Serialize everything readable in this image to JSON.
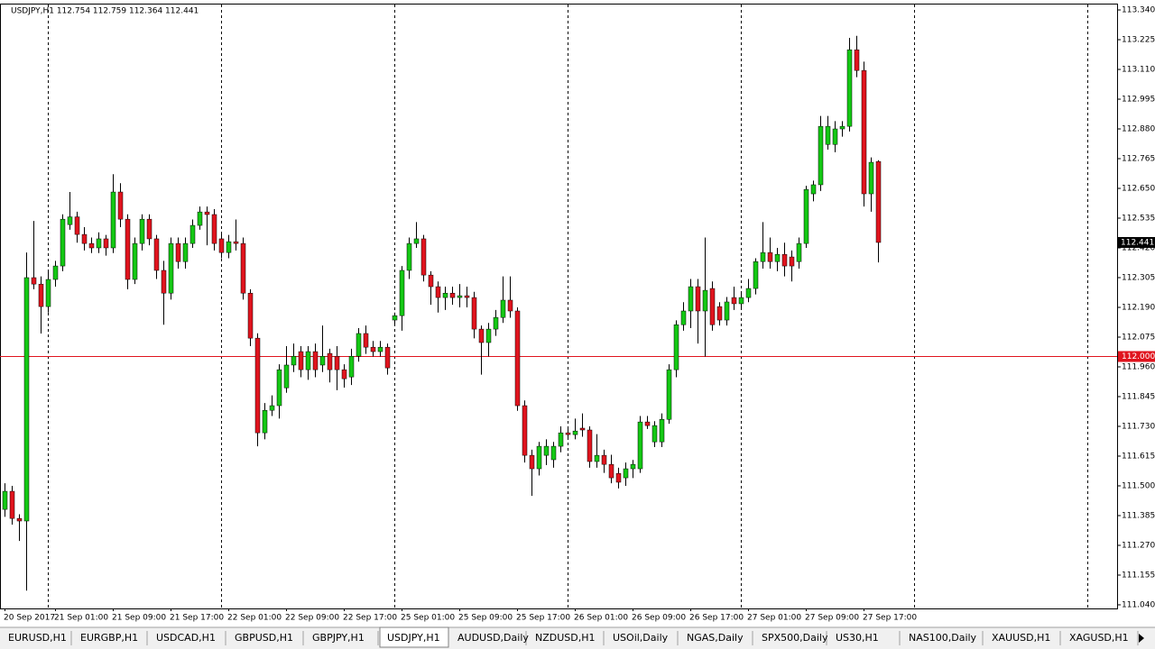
{
  "chart_data": {
    "type": "candlestick",
    "header": "USDJPY,H1  112.754 112.759 112.364 112.441",
    "categories": [
      "20 Sep 2017",
      null,
      null,
      null,
      null,
      null,
      null,
      "21 Sep 01:00",
      null,
      null,
      null,
      null,
      null,
      null,
      null,
      "21 Sep 09:00",
      null,
      null,
      null,
      null,
      null,
      null,
      null,
      "21 Sep 17:00",
      null,
      null,
      null,
      null,
      null,
      null,
      null,
      "22 Sep 01:00",
      null,
      null,
      null,
      null,
      null,
      null,
      null,
      "22 Sep 09:00",
      null,
      null,
      null,
      null,
      null,
      null,
      null,
      "22 Sep 17:00",
      null,
      null,
      null,
      null,
      null,
      null,
      null,
      "25 Sep 01:00",
      null,
      null,
      null,
      null,
      null,
      null,
      null,
      "25 Sep 09:00",
      null,
      null,
      null,
      null,
      null,
      null,
      null,
      "25 Sep 17:00",
      null,
      null,
      null,
      null,
      null,
      null,
      null,
      "26 Sep 01:00",
      null,
      null,
      null,
      null,
      null,
      null,
      null,
      "26 Sep 09:00",
      null,
      null,
      null,
      null,
      null,
      null,
      null,
      "26 Sep 17:00",
      null,
      null,
      null,
      null,
      null,
      null,
      null,
      "27 Sep 01:00",
      null,
      null,
      null,
      null,
      null,
      null,
      null,
      "27 Sep 09:00",
      null,
      null,
      null,
      null,
      null,
      null,
      null,
      "27 Sep 17:00",
      null,
      null
    ],
    "open": [
      111.409,
      111.479,
      111.374,
      111.364,
      112.305,
      112.28,
      112.193,
      112.298,
      112.35,
      112.51,
      112.54,
      112.472,
      112.437,
      112.42,
      112.455,
      112.42,
      112.636,
      112.531,
      112.298,
      112.437,
      112.531,
      112.455,
      112.333,
      112.245,
      112.437,
      112.367,
      112.437,
      112.507,
      112.559,
      112.549,
      112.455,
      112.402,
      112.444,
      112.437,
      112.245,
      112.071,
      111.705,
      111.792,
      111.81,
      111.879,
      111.967,
      112.019,
      111.949,
      112.019,
      111.967,
      112.012,
      112.001,
      111.949,
      111.921,
      112.001,
      112.089,
      112.036,
      112.019,
      112.036,
      112.141,
      112.158,
      112.333,
      112.437,
      112.455,
      112.315,
      112.27,
      112.228,
      112.245,
      112.228,
      112.235,
      112.228,
      112.106,
      112.054,
      112.106,
      112.151,
      112.218,
      112.176,
      111.81,
      111.618,
      111.566,
      111.618,
      111.601,
      111.653,
      111.705,
      111.698,
      111.723,
      111.716,
      111.594,
      111.618,
      111.583,
      111.548,
      111.531,
      111.566,
      111.566,
      111.747,
      111.67,
      111.67,
      111.757,
      111.949,
      112.123,
      112.176,
      112.27,
      112.176,
      112.263,
      112.193,
      112.141,
      112.228,
      112.204,
      112.228,
      112.263,
      112.367,
      112.402,
      112.367,
      112.395,
      112.385,
      112.367,
      112.437,
      112.629,
      112.664,
      112.82,
      112.82,
      112.88,
      112.89,
      113.186,
      113.106,
      112.629,
      112.754
    ],
    "high": [
      111.51,
      111.5,
      111.39,
      112.402,
      112.524,
      112.31,
      112.33,
      112.37,
      112.55,
      112.636,
      112.56,
      112.5,
      112.46,
      112.48,
      112.47,
      112.705,
      112.67,
      112.55,
      112.46,
      112.55,
      112.55,
      112.47,
      112.37,
      112.46,
      112.46,
      112.46,
      112.53,
      112.58,
      112.58,
      112.57,
      112.48,
      112.47,
      112.53,
      112.46,
      112.26,
      112.09,
      111.82,
      111.85,
      111.97,
      112.04,
      112.05,
      112.04,
      112.04,
      112.05,
      112.12,
      112.03,
      112.04,
      111.97,
      112.03,
      112.11,
      112.12,
      112.06,
      112.06,
      112.05,
      112.17,
      112.35,
      112.46,
      112.52,
      112.47,
      112.33,
      112.29,
      112.27,
      112.27,
      112.28,
      112.27,
      112.25,
      112.12,
      112.13,
      112.18,
      112.31,
      112.31,
      112.19,
      111.83,
      111.64,
      111.67,
      111.68,
      111.67,
      111.73,
      111.73,
      111.76,
      111.78,
      111.73,
      111.7,
      111.64,
      111.62,
      111.57,
      111.59,
      111.6,
      111.77,
      111.77,
      111.75,
      111.78,
      111.97,
      112.14,
      112.21,
      112.3,
      112.3,
      112.46,
      112.29,
      112.21,
      112.23,
      112.27,
      112.25,
      112.3,
      112.38,
      112.52,
      112.46,
      112.42,
      112.44,
      112.41,
      112.46,
      112.66,
      112.68,
      112.93,
      112.93,
      112.91,
      112.91,
      113.232,
      113.24,
      113.14,
      112.77,
      112.759
    ],
    "low": [
      111.38,
      111.35,
      111.287,
      111.095,
      112.26,
      112.089,
      112.17,
      112.27,
      112.33,
      112.49,
      112.44,
      112.41,
      112.4,
      112.4,
      112.39,
      112.4,
      112.5,
      112.26,
      112.28,
      112.41,
      112.43,
      112.3,
      112.123,
      112.22,
      112.34,
      112.34,
      112.42,
      112.49,
      112.43,
      112.41,
      112.38,
      112.38,
      112.41,
      112.22,
      112.04,
      111.653,
      111.68,
      111.77,
      111.76,
      111.86,
      111.94,
      111.92,
      111.91,
      111.92,
      111.94,
      111.9,
      111.87,
      111.88,
      111.89,
      111.98,
      112.01,
      112.0,
      112.0,
      111.93,
      112.12,
      112.1,
      112.3,
      112.42,
      112.29,
      112.2,
      112.17,
      112.18,
      112.2,
      112.19,
      112.19,
      112.07,
      111.93,
      112.0,
      112.08,
      112.13,
      112.15,
      111.79,
      111.59,
      111.461,
      111.54,
      111.58,
      111.57,
      111.63,
      111.68,
      111.68,
      111.69,
      111.57,
      111.57,
      111.55,
      111.51,
      111.49,
      111.5,
      111.53,
      111.55,
      111.72,
      111.65,
      111.65,
      111.74,
      111.92,
      112.1,
      112.11,
      112.05,
      112.0,
      112.1,
      112.12,
      112.12,
      112.18,
      112.19,
      112.21,
      112.24,
      112.34,
      112.34,
      112.33,
      112.31,
      112.29,
      112.34,
      112.42,
      112.6,
      112.64,
      112.8,
      112.79,
      112.85,
      112.87,
      113.08,
      112.58,
      112.56,
      112.364
    ],
    "close": [
      111.479,
      111.374,
      111.364,
      112.305,
      112.28,
      112.193,
      112.298,
      112.35,
      112.531,
      112.54,
      112.472,
      112.437,
      112.42,
      112.455,
      112.42,
      112.636,
      112.531,
      112.298,
      112.437,
      112.531,
      112.455,
      112.333,
      112.245,
      112.437,
      112.367,
      112.437,
      112.507,
      112.559,
      112.549,
      112.437,
      112.402,
      112.444,
      112.437,
      112.245,
      112.071,
      111.705,
      111.792,
      111.81,
      111.949,
      111.967,
      112.001,
      111.949,
      112.019,
      111.949,
      112.001,
      111.949,
      111.949,
      111.914,
      112.001,
      112.089,
      112.036,
      112.019,
      112.036,
      111.956,
      112.158,
      112.333,
      112.437,
      112.455,
      112.315,
      112.27,
      112.228,
      112.245,
      112.228,
      112.235,
      112.228,
      112.106,
      112.054,
      112.106,
      112.151,
      112.218,
      112.176,
      111.81,
      111.618,
      111.566,
      111.653,
      111.653,
      111.653,
      111.705,
      111.698,
      111.712,
      111.716,
      111.594,
      111.618,
      111.583,
      111.531,
      111.514,
      111.566,
      111.583,
      111.747,
      111.733,
      111.733,
      111.757,
      111.949,
      112.123,
      112.176,
      112.27,
      112.176,
      112.256,
      112.123,
      112.141,
      112.211,
      112.204,
      112.228,
      112.263,
      112.367,
      112.402,
      112.367,
      112.395,
      112.35,
      112.35,
      112.437,
      112.646,
      112.664,
      112.89,
      112.89,
      112.88,
      112.89,
      113.186,
      113.106,
      112.629,
      112.751,
      112.441
    ],
    "up_color": "#14c814",
    "down_color": "#e0141e",
    "ylim": [
      111.026,
      113.361
    ],
    "yticks": [
      {
        "value": 113.34,
        "label": "113.340"
      },
      {
        "value": 113.225,
        "label": "113.225"
      },
      {
        "value": 113.11,
        "label": "113.110"
      },
      {
        "value": 112.995,
        "label": "112.995"
      },
      {
        "value": 112.88,
        "label": "112.880"
      },
      {
        "value": 112.765,
        "label": "112.765"
      },
      {
        "value": 112.65,
        "label": "112.650"
      },
      {
        "value": 112.535,
        "label": "112.535"
      },
      {
        "value": 112.42,
        "label": "112.420"
      },
      {
        "value": 112.305,
        "label": "112.305"
      },
      {
        "value": 112.19,
        "label": "112.190"
      },
      {
        "value": 112.075,
        "label": "112.075"
      },
      {
        "value": 111.96,
        "label": "111.960"
      },
      {
        "value": 111.845,
        "label": "111.845"
      },
      {
        "value": 111.73,
        "label": "111.730"
      },
      {
        "value": 111.615,
        "label": "111.615"
      },
      {
        "value": 111.5,
        "label": "111.500"
      },
      {
        "value": 111.385,
        "label": "111.385"
      },
      {
        "value": 111.27,
        "label": "111.270"
      },
      {
        "value": 111.155,
        "label": "111.155"
      },
      {
        "value": 111.04,
        "label": "111.040"
      }
    ],
    "level": {
      "value": 112,
      "label": "112.000",
      "color": "#e0141e"
    },
    "last_price": {
      "value": 112.441,
      "label": "112.441"
    },
    "tabs": [
      "EURUSD,H1",
      "EURGBP,H1",
      "USDCAD,H1",
      "GBPUSD,H1",
      "GBPJPY,H1",
      "USDJPY,H1",
      "AUDUSD,Daily",
      "NZDUSD,H1",
      "USOil,Daily",
      "NGAS,Daily",
      "SPX500,Daily",
      "US30,H1",
      "NAS100,Daily",
      "XAUUSD,H1",
      "XAGUSD,H1"
    ],
    "active_tab": 5
  }
}
